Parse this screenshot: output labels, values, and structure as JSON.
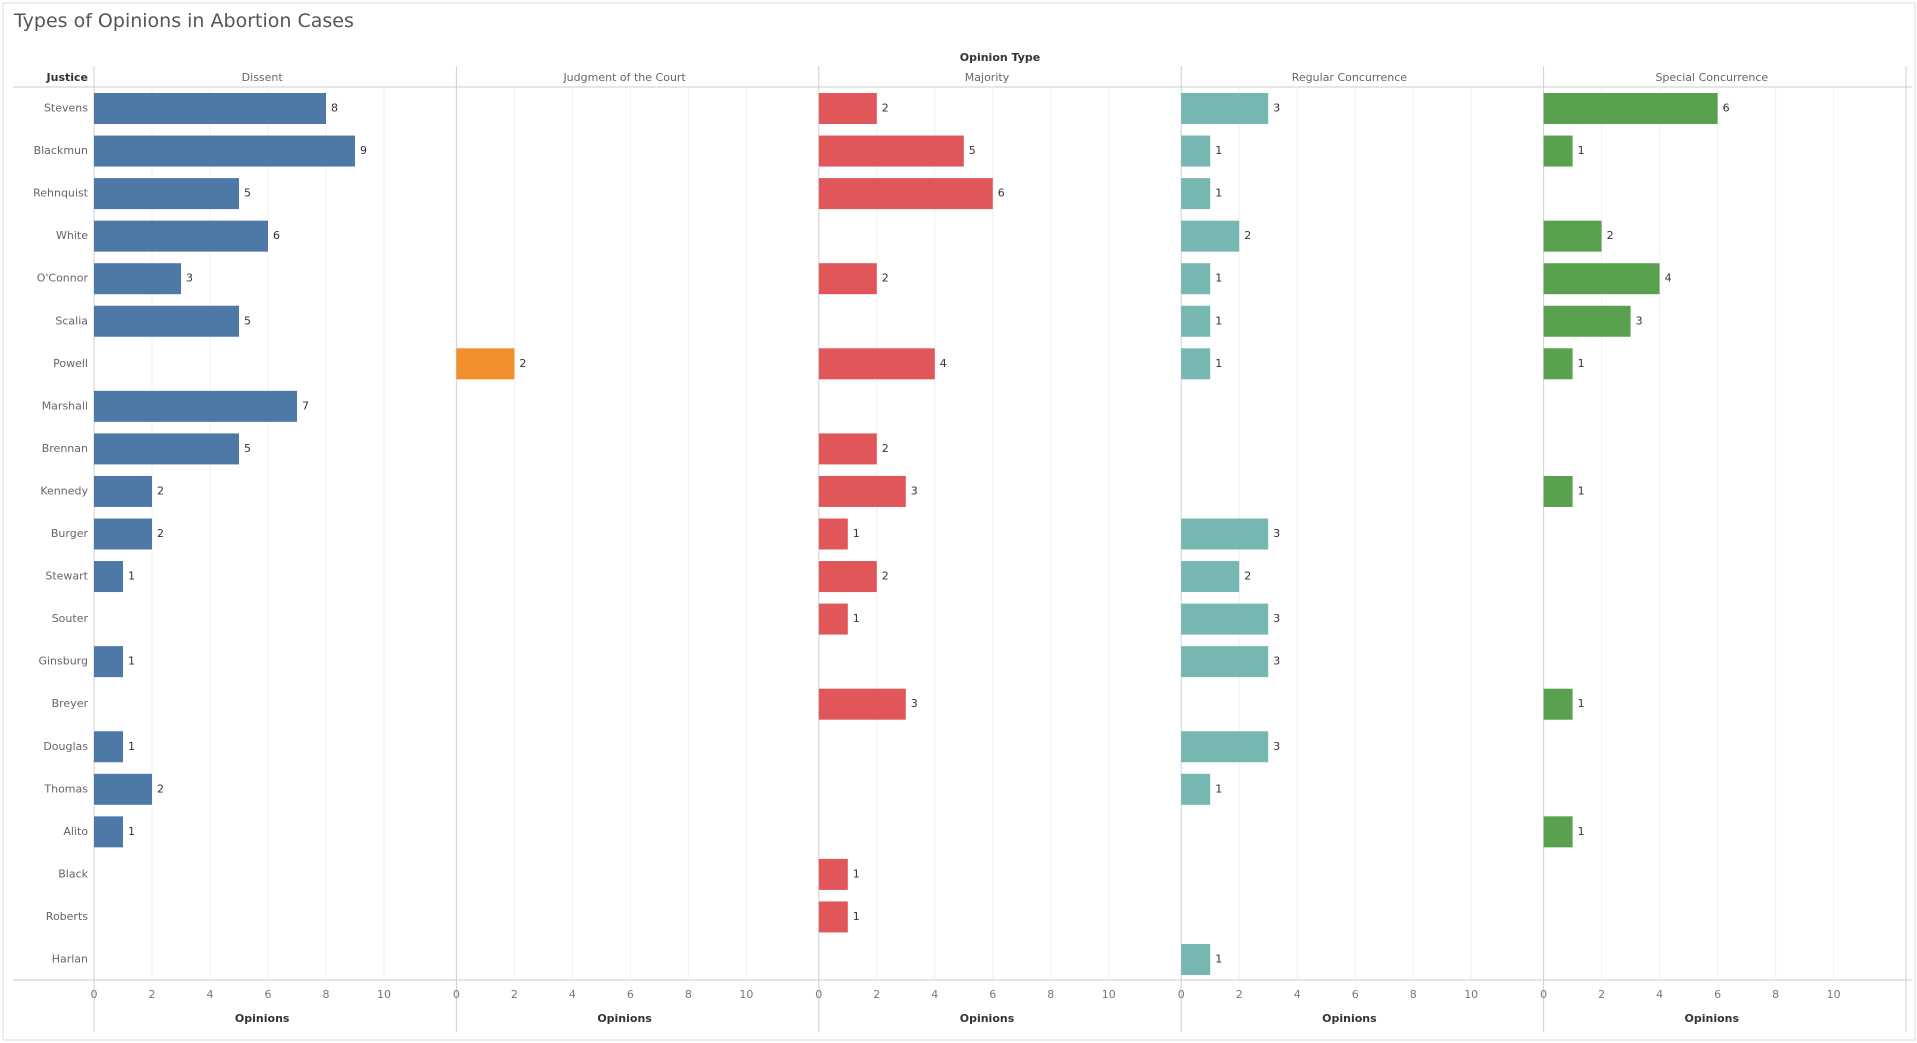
{
  "title": "Types of Opinions in Abortion Cases",
  "chart_data": {
    "type": "bar",
    "orientation": "horizontal",
    "title": "Types of Opinions in Abortion Cases",
    "column_header": "Opinion Type",
    "row_header": "Justice",
    "xlabel": "Opinions",
    "xlim": [
      0,
      10
    ],
    "xticks": [
      0,
      2,
      4,
      6,
      8,
      10
    ],
    "categories": [
      "Stevens",
      "Blackmun",
      "Rehnquist",
      "White",
      "O'Connor",
      "Scalia",
      "Powell",
      "Marshall",
      "Brennan",
      "Kennedy",
      "Burger",
      "Stewart",
      "Souter",
      "Ginsburg",
      "Breyer",
      "Douglas",
      "Thomas",
      "Alito",
      "Black",
      "Roberts",
      "Harlan"
    ],
    "series": [
      {
        "name": "Dissent",
        "color": "#4e79a7",
        "values": [
          8,
          9,
          5,
          6,
          3,
          5,
          null,
          7,
          5,
          2,
          2,
          1,
          null,
          1,
          null,
          1,
          2,
          1,
          null,
          null,
          null
        ]
      },
      {
        "name": "Judgment of the Court",
        "color": "#f28e2b",
        "values": [
          null,
          null,
          null,
          null,
          null,
          null,
          2,
          null,
          null,
          null,
          null,
          null,
          null,
          null,
          null,
          null,
          null,
          null,
          null,
          null,
          null
        ]
      },
      {
        "name": "Majority",
        "color": "#e15759",
        "values": [
          2,
          5,
          6,
          null,
          2,
          null,
          4,
          null,
          2,
          3,
          1,
          2,
          1,
          null,
          3,
          null,
          null,
          null,
          1,
          1,
          null
        ]
      },
      {
        "name": "Regular Concurrence",
        "color": "#76b7b2",
        "values": [
          3,
          1,
          1,
          2,
          1,
          1,
          1,
          null,
          null,
          null,
          3,
          2,
          3,
          3,
          null,
          3,
          1,
          null,
          null,
          null,
          1
        ]
      },
      {
        "name": "Special Concurrence",
        "color": "#59a14f",
        "values": [
          6,
          1,
          null,
          2,
          4,
          3,
          1,
          null,
          null,
          1,
          null,
          null,
          null,
          null,
          1,
          null,
          null,
          1,
          null,
          null,
          null
        ]
      }
    ]
  }
}
